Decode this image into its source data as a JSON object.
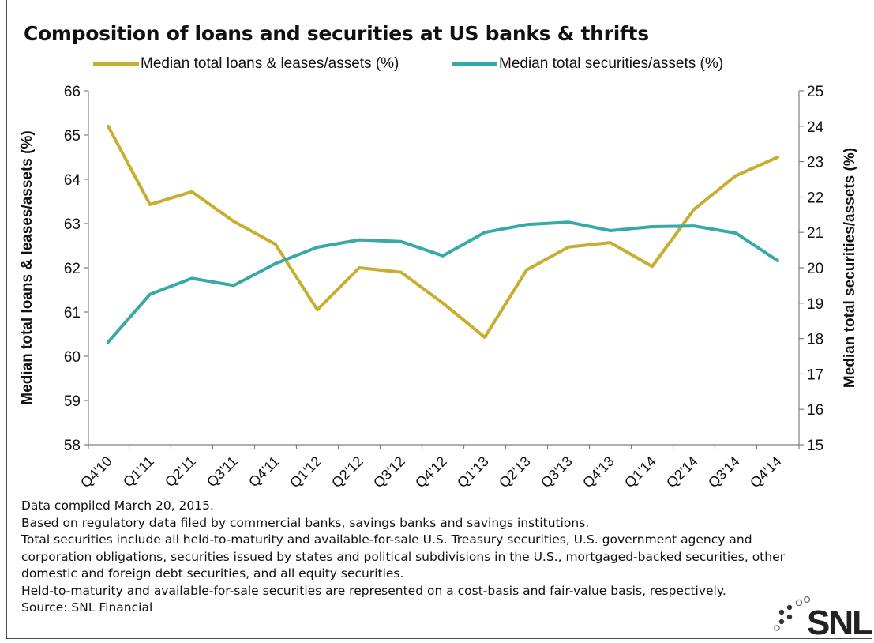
{
  "chart_data": {
    "type": "line",
    "title": "Composition of loans and securities at US banks & thrifts",
    "categories": [
      "Q4'10",
      "Q1'11",
      "Q2'11",
      "Q3'11",
      "Q4'11",
      "Q1'12",
      "Q2'12",
      "Q3'12",
      "Q4'12",
      "Q1'13",
      "Q2'13",
      "Q3'13",
      "Q4'13",
      "Q1'14",
      "Q2'14",
      "Q3'14",
      "Q4'14"
    ],
    "series": [
      {
        "name": "Median total loans & leases/assets (%)",
        "axis": "left",
        "color": "#c9ad2f",
        "values": [
          65.2,
          63.43,
          63.72,
          63.05,
          62.53,
          61.05,
          62.0,
          61.9,
          61.2,
          60.43,
          61.95,
          62.47,
          62.57,
          62.03,
          63.32,
          64.08,
          64.5
        ]
      },
      {
        "name": "Median total securities/assets (%)",
        "axis": "right",
        "color": "#37aaa7",
        "values": [
          17.9,
          19.25,
          19.7,
          19.5,
          20.12,
          20.58,
          20.79,
          20.74,
          20.34,
          21.0,
          21.22,
          21.29,
          21.05,
          21.16,
          21.18,
          20.98,
          20.2
        ]
      }
    ],
    "ylabel_left": "Median total loans & leases/assets (%)",
    "ylabel_right": "Median total securities/assets (%)",
    "ylim_left": [
      58,
      66
    ],
    "ylim_right": [
      15,
      25
    ],
    "yticks_left": [
      "58",
      "59",
      "60",
      "61",
      "62",
      "63",
      "64",
      "65",
      "66"
    ],
    "yticks_right": [
      "15",
      "16",
      "17",
      "18",
      "19",
      "20",
      "21",
      "22",
      "23",
      "24",
      "25"
    ],
    "grid": false,
    "legend_position": "top"
  },
  "notes": [
    "Data compiled March 20, 2015.",
    "Based on regulatory data filed by commercial banks, savings banks and savings institutions.",
    "Total securities include all held-to-maturity and available-for-sale U.S. Treasury securities, U.S. government agency and",
    "corporation obligations, securities issued by states and political subdivisions in the U.S., mortgaged-backed securities, other",
    "domestic and foreign debt securities, and all equity securities.",
    "Held-to-maturity and available-for-sale securities are represented on a cost-basis and fair-value basis, respectively.",
    "Source: SNL Financial"
  ],
  "logo": {
    "text": "SNL"
  }
}
